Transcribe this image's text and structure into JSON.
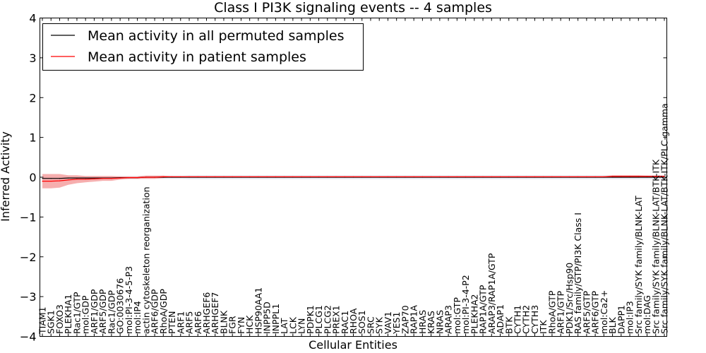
{
  "chart_data": {
    "type": "line",
    "title": "Class I PI3K signaling events -- 4 samples",
    "xlabel": "Cellular Entities",
    "ylabel": "Inferred Activity",
    "ylim": [
      -4,
      4
    ],
    "yticks": [
      "4",
      "3",
      "2",
      "1",
      "0",
      "−1",
      "−2",
      "−3",
      "−4"
    ],
    "yticks_values": [
      4,
      3,
      2,
      1,
      0,
      -1,
      -2,
      -3,
      -4
    ],
    "legend_position": "top-left",
    "grid": false,
    "categories": [
      "TIAM1",
      "SGK1",
      "FOXO3",
      "PLEKHA1",
      "Rac1/GTP",
      "mol:GDP",
      "ARF1/GDP",
      "ARF5/GDP",
      "Rac1/GDP",
      "GO:0030676",
      "mol:PI-3-4-5-P3",
      "mol:IP4",
      "actin cytoskeleton reorganization",
      "ARF6/GDP",
      "RhoA/GDP",
      "PTEN",
      "ARF1",
      "ARF5",
      "ARF6",
      "ARHGEF6",
      "ARHGEF7",
      "BLNK",
      "FGR",
      "FYN",
      "HCK",
      "HSP90AA1",
      "INPP5D",
      "INPPL1",
      "LAT",
      "LCK",
      "LYN",
      "PDPK1",
      "PLCG1",
      "PLCG2",
      "PREX1",
      "RAC1",
      "RHOA",
      "SOS1",
      "SRC",
      "SYK",
      "VAV1",
      "YES1",
      "ZAP70",
      "RAP1A",
      "HRAS",
      "KRAS",
      "NRAS",
      "ARAP3",
      "mol:GTP",
      "mol:PI-3-4-P2",
      "PLEKHA2",
      "RAP1A/GTP",
      "ARAP3/RAP1A/GTP",
      "ADAP1",
      "BTK",
      "CYTH1",
      "CYTH2",
      "CYTH3",
      "ITK",
      "RhoA/GTP",
      "ARF1/GTP",
      "PDK1/Src/Hsp90",
      "RAS family/GTP/PI3K Class I",
      "ARF5/GTP",
      "ARF6/GTP",
      "mol:Ca2+",
      "BLK",
      "DAPP1",
      "mol:IP3",
      "Src family/SYK family/BLNK-LAT",
      "mol:DAG",
      "Src family/SYK family/BLNK-LAT/BTK-ITK",
      "Src family/SYK family/BLNK-LAT/BTK-ITK/PLC-gamma"
    ],
    "series": [
      {
        "name": "Mean activity in all permuted samples",
        "color": "#000000",
        "band_color": "#d0d0e0",
        "values": [
          -0.03,
          -0.03,
          -0.03,
          -0.02,
          -0.02,
          -0.02,
          -0.02,
          -0.02,
          -0.02,
          -0.01,
          -0.01,
          -0.01,
          0.0,
          0.0,
          0.0,
          0.0,
          0.0,
          0.0,
          0.0,
          0.0,
          0.0,
          0.0,
          0.0,
          0.0,
          0.0,
          0.0,
          0.0,
          0.0,
          0.0,
          0.0,
          0.0,
          0.0,
          0.0,
          0.0,
          0.0,
          0.0,
          0.0,
          0.0,
          0.0,
          0.0,
          0.0,
          0.0,
          0.0,
          0.0,
          0.0,
          0.0,
          0.0,
          0.0,
          0.0,
          0.0,
          0.0,
          0.0,
          0.0,
          0.0,
          0.0,
          0.0,
          0.0,
          0.0,
          0.0,
          0.0,
          0.0,
          0.0,
          0.0,
          0.0,
          0.0,
          0.0,
          0.0,
          0.0,
          0.0,
          0.0,
          0.0,
          0.0,
          0.0
        ],
        "band": [
          0.04,
          0.04,
          0.04,
          0.04,
          0.04,
          0.04,
          0.04,
          0.04,
          0.04,
          0.04,
          0.04,
          0.04,
          0.04,
          0.04,
          0.04,
          0.04,
          0.04,
          0.05,
          0.05,
          0.05,
          0.05,
          0.05,
          0.05,
          0.05,
          0.05,
          0.05,
          0.05,
          0.05,
          0.05,
          0.05,
          0.05,
          0.05,
          0.05,
          0.05,
          0.05,
          0.05,
          0.05,
          0.05,
          0.05,
          0.05,
          0.05,
          0.05,
          0.05,
          0.05,
          0.05,
          0.05,
          0.05,
          0.05,
          0.05,
          0.05,
          0.05,
          0.05,
          0.05,
          0.05,
          0.05,
          0.05,
          0.05,
          0.05,
          0.05,
          0.05,
          0.05,
          0.05,
          0.05,
          0.05,
          0.05,
          0.05,
          0.05,
          0.05,
          0.05,
          0.05,
          0.05,
          0.05,
          0.05
        ]
      },
      {
        "name": "Mean activity in patient samples",
        "color": "#ff0000",
        "band_color": "#f4a0a0",
        "values": [
          -0.1,
          -0.1,
          -0.09,
          -0.07,
          -0.05,
          -0.05,
          -0.04,
          -0.03,
          -0.03,
          -0.02,
          -0.01,
          -0.01,
          0.0,
          0.0,
          0.01,
          0.01,
          0.01,
          0.01,
          0.01,
          0.01,
          0.01,
          0.01,
          0.01,
          0.01,
          0.01,
          0.01,
          0.01,
          0.01,
          0.01,
          0.01,
          0.01,
          0.01,
          0.01,
          0.01,
          0.01,
          0.01,
          0.01,
          0.01,
          0.01,
          0.01,
          0.01,
          0.01,
          0.01,
          0.01,
          0.01,
          0.01,
          0.01,
          0.01,
          0.01,
          0.01,
          0.01,
          0.01,
          0.01,
          0.01,
          0.01,
          0.01,
          0.01,
          0.01,
          0.01,
          0.01,
          0.01,
          0.01,
          0.01,
          0.01,
          0.01,
          0.01,
          0.02,
          0.02,
          0.02,
          0.02,
          0.02,
          0.02,
          0.02
        ],
        "band": [
          0.18,
          0.18,
          0.17,
          0.12,
          0.1,
          0.08,
          0.07,
          0.06,
          0.06,
          0.04,
          0.03,
          0.03,
          0.04,
          0.04,
          0.03,
          0.01,
          0.01,
          0.01,
          0.01,
          0.01,
          0.01,
          0.01,
          0.01,
          0.01,
          0.01,
          0.01,
          0.01,
          0.01,
          0.01,
          0.01,
          0.01,
          0.01,
          0.01,
          0.01,
          0.01,
          0.01,
          0.01,
          0.01,
          0.01,
          0.01,
          0.01,
          0.01,
          0.01,
          0.01,
          0.01,
          0.01,
          0.01,
          0.01,
          0.01,
          0.01,
          0.01,
          0.01,
          0.01,
          0.01,
          0.01,
          0.01,
          0.01,
          0.01,
          0.01,
          0.01,
          0.01,
          0.01,
          0.01,
          0.01,
          0.01,
          0.01,
          0.03,
          0.03,
          0.03,
          0.03,
          0.02,
          0.02,
          0.02
        ]
      }
    ]
  }
}
